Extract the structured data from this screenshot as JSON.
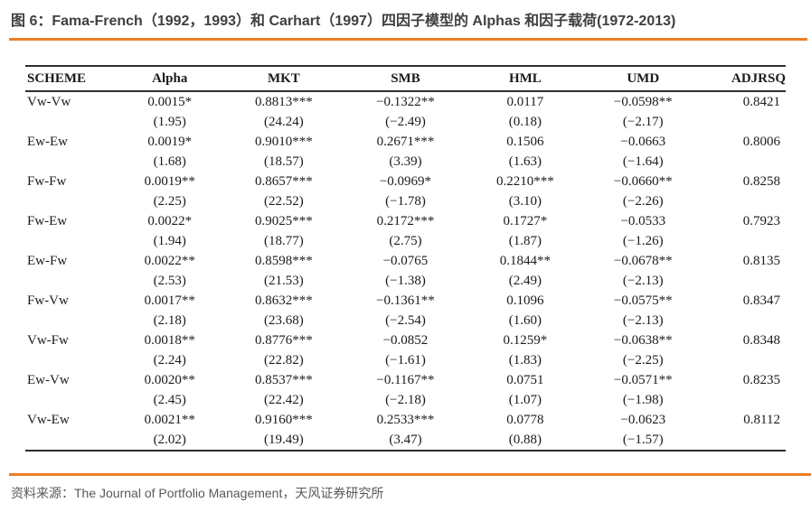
{
  "header": {
    "title": "图 6：Fama-French（1992，1993）和 Carhart（1997）四因子模型的 Alphas 和因子载荷(1972-2013)"
  },
  "table": {
    "columns": [
      "SCHEME",
      "Alpha",
      "MKT",
      "SMB",
      "HML",
      "UMD",
      "ADJRSQ"
    ],
    "rows": [
      {
        "scheme": "Vw-Vw",
        "values": [
          "0.0015*",
          "0.8813***",
          "−0.1322**",
          "0.0117",
          "−0.0598**",
          "0.8421"
        ],
        "tstats": [
          "(1.95)",
          "(24.24)",
          "(−2.49)",
          "(0.18)",
          "(−2.17)",
          ""
        ]
      },
      {
        "scheme": "Ew-Ew",
        "values": [
          "0.0019*",
          "0.9010***",
          "0.2671***",
          "0.1506",
          "−0.0663",
          "0.8006"
        ],
        "tstats": [
          "(1.68)",
          "(18.57)",
          "(3.39)",
          "(1.63)",
          "(−1.64)",
          ""
        ]
      },
      {
        "scheme": "Fw-Fw",
        "values": [
          "0.0019**",
          "0.8657***",
          "−0.0969*",
          "0.2210***",
          "−0.0660**",
          "0.8258"
        ],
        "tstats": [
          "(2.25)",
          "(22.52)",
          "(−1.78)",
          "(3.10)",
          "(−2.26)",
          ""
        ]
      },
      {
        "scheme": "Fw-Ew",
        "values": [
          "0.0022*",
          "0.9025***",
          "0.2172***",
          "0.1727*",
          "−0.0533",
          "0.7923"
        ],
        "tstats": [
          "(1.94)",
          "(18.77)",
          "(2.75)",
          "(1.87)",
          "(−1.26)",
          ""
        ]
      },
      {
        "scheme": "Ew-Fw",
        "values": [
          "0.0022**",
          "0.8598***",
          "−0.0765",
          "0.1844**",
          "−0.0678**",
          "0.8135"
        ],
        "tstats": [
          "(2.53)",
          "(21.53)",
          "(−1.38)",
          "(2.49)",
          "(−2.13)",
          ""
        ]
      },
      {
        "scheme": "Fw-Vw",
        "values": [
          "0.0017**",
          "0.8632***",
          "−0.1361**",
          "0.1096",
          "−0.0575**",
          "0.8347"
        ],
        "tstats": [
          "(2.18)",
          "(23.68)",
          "(−2.54)",
          "(1.60)",
          "(−2.13)",
          ""
        ]
      },
      {
        "scheme": "Vw-Fw",
        "values": [
          "0.0018**",
          "0.8776***",
          "−0.0852",
          "0.1259*",
          "−0.0638**",
          "0.8348"
        ],
        "tstats": [
          "(2.24)",
          "(22.82)",
          "(−1.61)",
          "(1.83)",
          "(−2.25)",
          ""
        ]
      },
      {
        "scheme": "Ew-Vw",
        "values": [
          "0.0020**",
          "0.8537***",
          "−0.1167**",
          "0.0751",
          "−0.0571**",
          "0.8235"
        ],
        "tstats": [
          "(2.45)",
          "(22.42)",
          "(−2.18)",
          "(1.07)",
          "(−1.98)",
          ""
        ]
      },
      {
        "scheme": "Vw-Ew",
        "values": [
          "0.0021**",
          "0.9160***",
          "0.2533***",
          "0.0778",
          "−0.0623",
          "0.8112"
        ],
        "tstats": [
          "(2.02)",
          "(19.49)",
          "(3.47)",
          "(0.88)",
          "(−1.57)",
          ""
        ]
      }
    ]
  },
  "footer": {
    "source": "资料来源：The Journal of Portfolio Management，天风证券研究所"
  },
  "colors": {
    "accent_orange": "#ec7e23",
    "title_text": "#3f3f3f",
    "source_text": "#595959",
    "table_text": "#1b1b1b"
  }
}
